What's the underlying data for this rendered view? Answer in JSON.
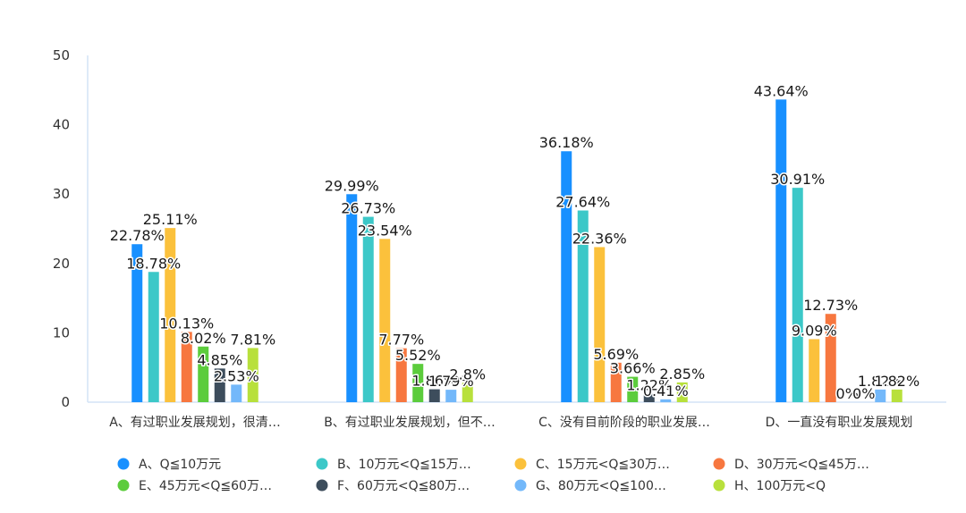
{
  "chart_data": {
    "type": "bar",
    "ylim": [
      0,
      50
    ],
    "yticks": [
      "0",
      "10",
      "20",
      "30",
      "40",
      "50"
    ],
    "yticks_values": [
      0,
      10,
      20,
      30,
      40,
      50
    ],
    "grid": false,
    "legend_position": "bottom",
    "categories": [
      "A、有过职业发展规划，很清…",
      "B、有过职业发展规划，但不…",
      "C、没有目前阶段的职业发展…",
      "D、一直没有职业发展规划"
    ],
    "series": [
      {
        "name": "A、Q≦10万元",
        "color": "#1890ff",
        "values": [
          22.78,
          29.99,
          36.18,
          43.64
        ],
        "labels": [
          "22.78%",
          "29.99%",
          "36.18%",
          "43.64%"
        ]
      },
      {
        "name": "B、10万元<Q≦15万…",
        "color": "#3cc8c8",
        "values": [
          18.78,
          26.73,
          27.64,
          30.91
        ],
        "labels": [
          "18.78%",
          "26.73%",
          "27.64%",
          "30.91%"
        ]
      },
      {
        "name": "C、15万元<Q≦30万…",
        "color": "#fbc13c",
        "values": [
          25.11,
          23.54,
          22.36,
          9.09
        ],
        "labels": [
          "25.11%",
          "23.54%",
          "22.36%",
          "9.09%"
        ]
      },
      {
        "name": "D、30万元<Q≦45万…",
        "color": "#f7773f",
        "values": [
          10.13,
          7.77,
          5.69,
          12.73
        ],
        "labels": [
          "10.13%",
          "7.77%",
          "5.69%",
          "12.73%"
        ]
      },
      {
        "name": "E、45万元<Q≦60万…",
        "color": "#5ccc3c",
        "values": [
          8.02,
          5.52,
          3.66,
          0
        ],
        "labels": [
          "8.02%",
          "5.52%",
          "3.66%",
          "0%"
        ]
      },
      {
        "name": "F、60万元<Q≦80万…",
        "color": "#3d4d5c",
        "values": [
          4.85,
          1.86,
          1.22,
          0
        ],
        "labels": [
          "4.85%",
          "1.86%",
          "1.22%",
          "0%"
        ]
      },
      {
        "name": "G、80万元<Q≦100…",
        "color": "#73b8fa",
        "values": [
          2.53,
          1.79,
          0.41,
          1.82
        ],
        "labels": [
          "2.53%",
          "1.79%",
          "0.41%",
          "1.82%"
        ]
      },
      {
        "name": "H、100万元<Q",
        "color": "#b8e03c",
        "values": [
          7.81,
          2.8,
          2.85,
          1.82
        ],
        "labels": [
          "7.81%",
          "2.8%",
          "2.85%",
          "1.82%"
        ]
      }
    ]
  }
}
